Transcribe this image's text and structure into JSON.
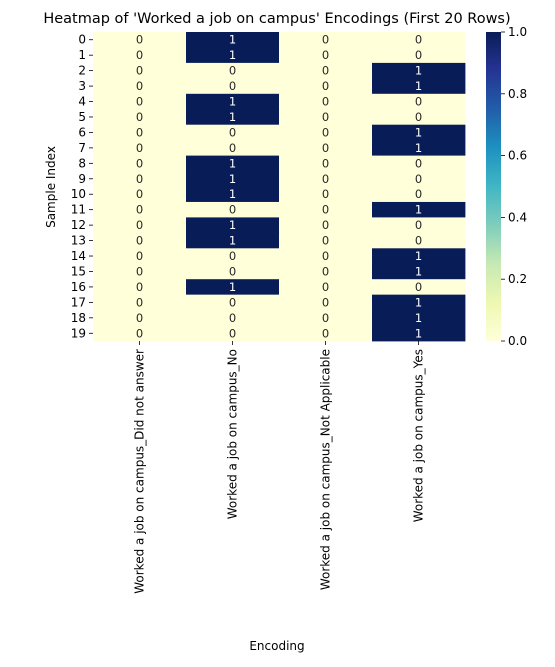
{
  "chart_data": {
    "type": "heatmap",
    "title": "Heatmap of 'Worked a job on campus' Encodings (First 20 Rows)",
    "xlabel": "Encoding",
    "ylabel": "Sample Index",
    "rows": [
      "0",
      "1",
      "2",
      "3",
      "4",
      "5",
      "6",
      "7",
      "8",
      "9",
      "10",
      "11",
      "12",
      "13",
      "14",
      "15",
      "16",
      "17",
      "18",
      "19"
    ],
    "columns": [
      "Worked a job on campus_Did not answer",
      "Worked a job on campus_No",
      "Worked a job on campus_Not Applicable",
      "Worked a job on campus_Yes"
    ],
    "values": [
      [
        0,
        1,
        0,
        0
      ],
      [
        0,
        1,
        0,
        0
      ],
      [
        0,
        0,
        0,
        1
      ],
      [
        0,
        0,
        0,
        1
      ],
      [
        0,
        1,
        0,
        0
      ],
      [
        0,
        1,
        0,
        0
      ],
      [
        0,
        0,
        0,
        1
      ],
      [
        0,
        0,
        0,
        1
      ],
      [
        0,
        1,
        0,
        0
      ],
      [
        0,
        1,
        0,
        0
      ],
      [
        0,
        1,
        0,
        0
      ],
      [
        0,
        0,
        0,
        1
      ],
      [
        0,
        1,
        0,
        0
      ],
      [
        0,
        1,
        0,
        0
      ],
      [
        0,
        0,
        0,
        1
      ],
      [
        0,
        0,
        0,
        1
      ],
      [
        0,
        1,
        0,
        0
      ],
      [
        0,
        0,
        0,
        1
      ],
      [
        0,
        0,
        0,
        1
      ],
      [
        0,
        0,
        0,
        1
      ]
    ],
    "annotations": true,
    "colormap": "YlGnBu",
    "colormap_stops": [
      "#ffffd9",
      "#edf8b1",
      "#c7e9b4",
      "#7fcdbb",
      "#41b6c4",
      "#1d91c0",
      "#225ea8",
      "#253494",
      "#081d58"
    ],
    "low_color": "#ffffd9",
    "high_color": "#081d58",
    "text_dark": "#262626",
    "text_light": "#ffffff",
    "vmin": 0,
    "vmax": 1,
    "colorbar_ticks": [
      "0.0",
      "0.2",
      "0.4",
      "0.6",
      "0.8",
      "1.0"
    ],
    "grid": false
  }
}
